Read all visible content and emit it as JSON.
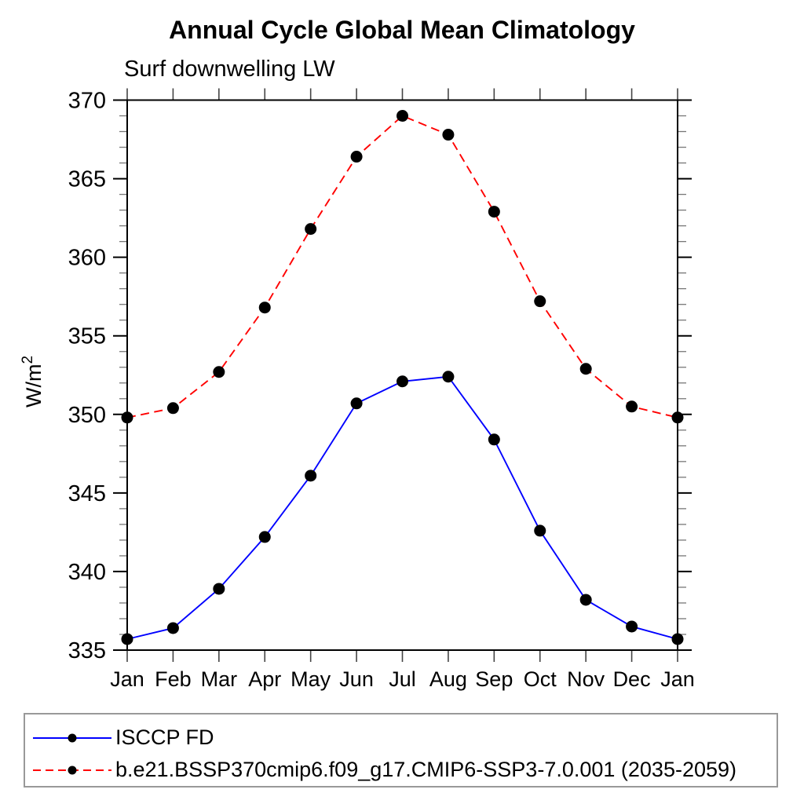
{
  "chart_data": {
    "type": "line",
    "title": "Annual Cycle Global Mean Climatology",
    "subtitle": "Surf downwelling LW",
    "ylabel": "W/m²",
    "ylabel_base": "W/m",
    "ylabel_exp": "2",
    "xlabel": "",
    "x_categories": [
      "Jan",
      "Feb",
      "Mar",
      "Apr",
      "May",
      "Jun",
      "Jul",
      "Aug",
      "Sep",
      "Oct",
      "Nov",
      "Dec",
      "Jan"
    ],
    "ylim": [
      335,
      370
    ],
    "ytick_major_step": 5,
    "ytick_minor_step": 1,
    "ytick_labels": [
      "335",
      "340",
      "345",
      "350",
      "355",
      "360",
      "365",
      "370"
    ],
    "grid": false,
    "legend_position": "bottom-box",
    "marker": "filled-circle",
    "marker_color": "#000000",
    "axis_color": "#000000",
    "series": [
      {
        "name": "ISCCP FD",
        "color": "#0000ff",
        "line_style": "solid",
        "values": [
          335.7,
          336.4,
          338.9,
          342.2,
          346.1,
          350.7,
          352.1,
          352.4,
          348.4,
          342.6,
          338.2,
          336.5,
          335.7
        ]
      },
      {
        "name": "b.e21.BSSP370cmip6.f09_g17.CMIP6-SSP3-7.0.001 (2035-2059)",
        "color": "#ff0000",
        "line_style": "dashed",
        "values": [
          349.8,
          350.4,
          352.7,
          356.8,
          361.8,
          366.4,
          369.0,
          367.8,
          362.9,
          357.2,
          352.9,
          350.5,
          349.8
        ]
      }
    ]
  }
}
